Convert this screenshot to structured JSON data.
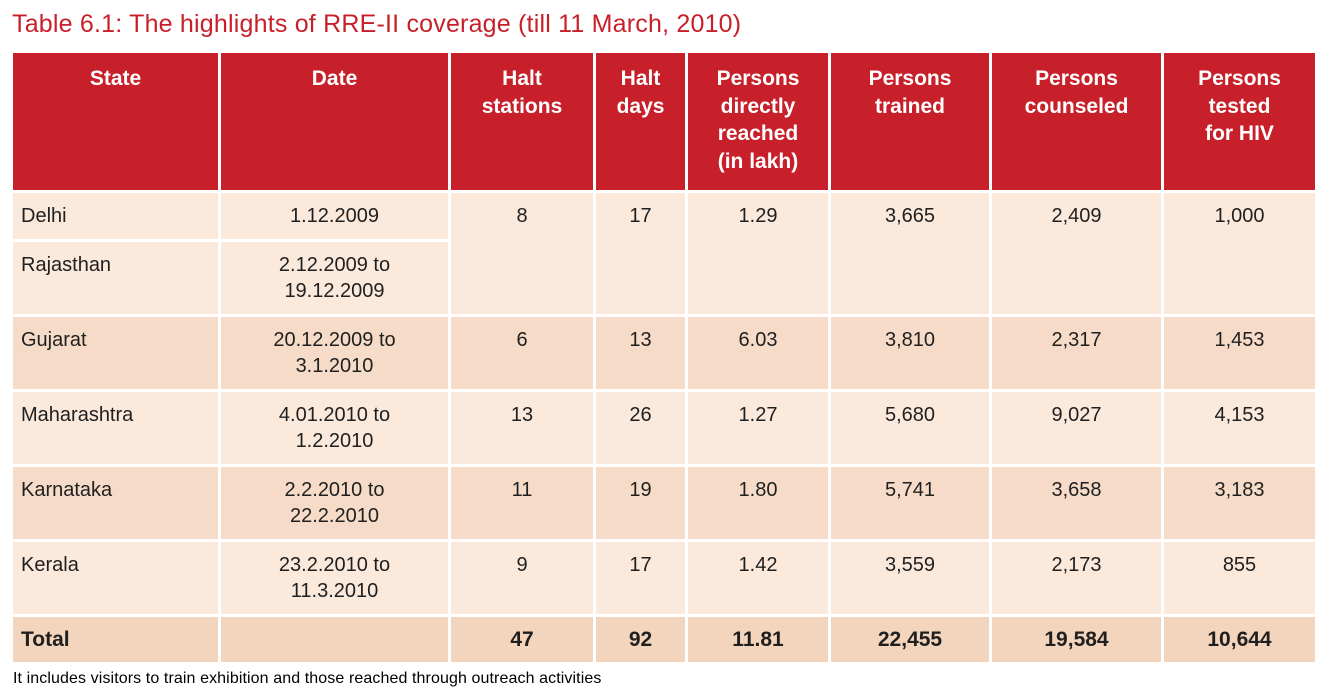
{
  "title": "Table 6.1: The highlights of RRE-II coverage (till 11 March, 2010)",
  "footnote": "It includes visitors to train exhibition and those reached through outreach activities",
  "colors": {
    "accent_red": "#c8202a",
    "header_text": "#ffffff",
    "row_light": "#fbe9dc",
    "row_dark": "#f6dcc8",
    "total_row_bg": "#f3d5bd",
    "body_text": "#1f1f1f"
  },
  "table": {
    "columns": [
      {
        "key": "state",
        "label": "State"
      },
      {
        "key": "date",
        "label": "Date"
      },
      {
        "key": "halt-stations",
        "label": "Halt\nstations"
      },
      {
        "key": "halt-days",
        "label": "Halt\ndays"
      },
      {
        "key": "persons-directly-reached",
        "label": "Persons\ndirectly\nreached\n(in lakh)"
      },
      {
        "key": "persons-trained",
        "label": "Persons\ntrained"
      },
      {
        "key": "persons-counseled",
        "label": "Persons\ncounseled"
      },
      {
        "key": "persons-tested-hiv",
        "label": "Persons\ntested\nfor HIV"
      }
    ],
    "rows": [
      {
        "state": "Delhi",
        "date": "1.12.2009",
        "values": [
          "8",
          "17",
          "1.29",
          "3,665",
          "2,409",
          "1,000"
        ],
        "values_rowspan": 2,
        "shade": "light"
      },
      {
        "state": "Rajasthan",
        "date": "2.12.2009 to\n19.12.2009",
        "values": null,
        "shade": "light"
      },
      {
        "state": "Gujarat",
        "date": "20.12.2009 to\n3.1.2010",
        "values": [
          "6",
          "13",
          "6.03",
          "3,810",
          "2,317",
          "1,453"
        ],
        "shade": "dark"
      },
      {
        "state": "Maharashtra",
        "date": "4.01.2010 to\n1.2.2010",
        "values": [
          "13",
          "26",
          "1.27",
          "5,680",
          "9,027",
          "4,153"
        ],
        "shade": "light"
      },
      {
        "state": "Karnataka",
        "date": "2.2.2010 to\n22.2.2010",
        "values": [
          "11",
          "19",
          "1.80",
          "5,741",
          "3,658",
          "3,183"
        ],
        "shade": "dark"
      },
      {
        "state": "Kerala",
        "date": "23.2.2010 to\n11.3.2010",
        "values": [
          "9",
          "17",
          "1.42",
          "3,559",
          "2,173",
          "855"
        ],
        "shade": "light"
      }
    ],
    "total_row": {
      "label": "Total",
      "date": "",
      "values": [
        "47",
        "92",
        "11.81",
        "22,455",
        "19,584",
        "10,644"
      ]
    }
  }
}
